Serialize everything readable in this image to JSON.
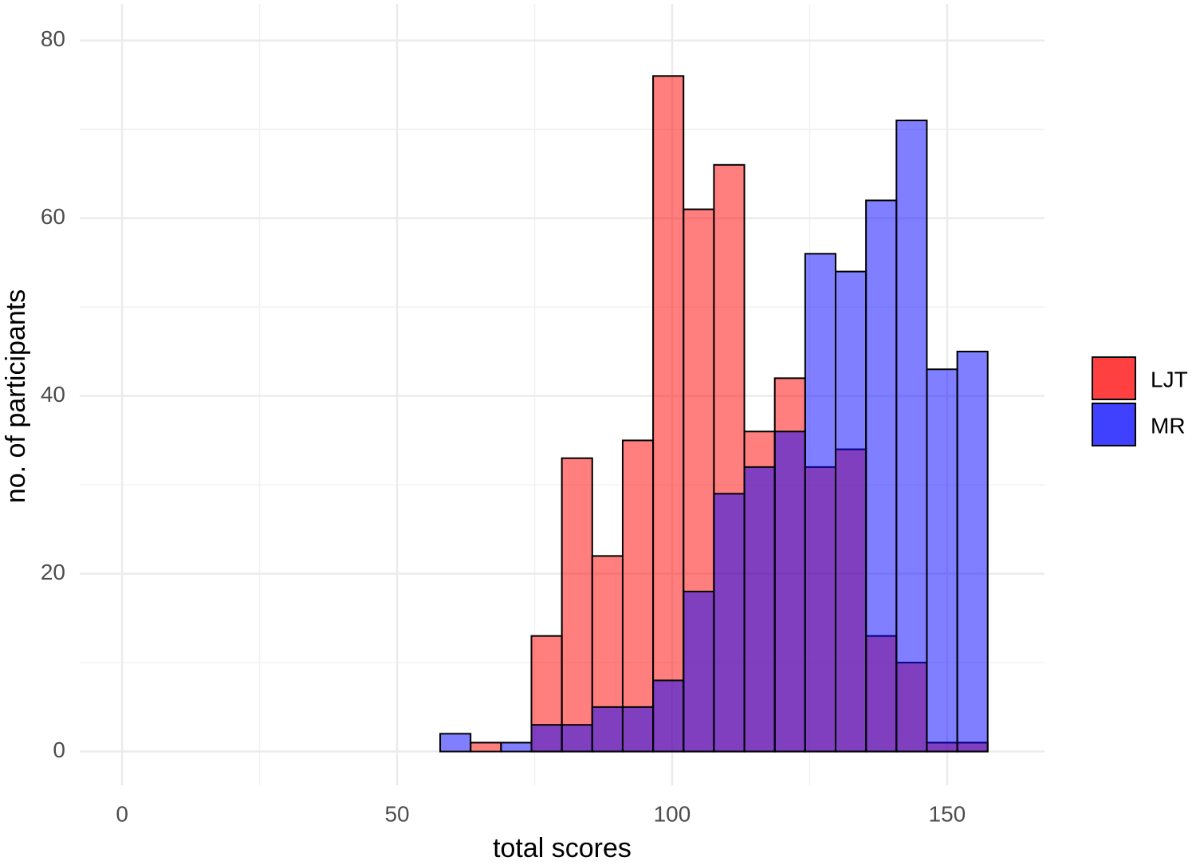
{
  "chart_data": {
    "type": "histogram",
    "x_label": "total scores",
    "y_label": "no. of participants",
    "bins": [
      2.53,
      8.06,
      13.59,
      19.12,
      24.65,
      30.18,
      35.71,
      41.24,
      46.77,
      52.3,
      57.83,
      63.36,
      68.89,
      74.42,
      79.95,
      85.48,
      91.01,
      96.54,
      102.07,
      107.6,
      113.13,
      118.66,
      124.19,
      129.72,
      135.25,
      140.78,
      146.31,
      151.84,
      157.37
    ],
    "series": [
      {
        "name": "LJT",
        "color": "#ff0000",
        "values": [
          0,
          0,
          0,
          0,
          0,
          0,
          0,
          0,
          0,
          0,
          0,
          1,
          0,
          13,
          33,
          22,
          35,
          76,
          61,
          66,
          36,
          42,
          32,
          34,
          13,
          10,
          1,
          1
        ]
      },
      {
        "name": "MR",
        "color": "#0000ff",
        "values": [
          0,
          0,
          0,
          0,
          0,
          0,
          0,
          0,
          0,
          0,
          2,
          0,
          1,
          3,
          3,
          5,
          5,
          8,
          18,
          29,
          32,
          36,
          56,
          54,
          62,
          71,
          43,
          45
        ]
      }
    ],
    "opacity": 0.5,
    "xlim": [
      -7.7,
      167.7
    ],
    "ylim": [
      -3.8,
      84.1
    ],
    "xticks": [
      0,
      50,
      100,
      150
    ],
    "yticks": [
      0,
      20,
      40,
      60,
      80
    ],
    "x_minor_grid": [
      25,
      75,
      125
    ],
    "y_minor_grid": [
      10,
      30,
      50,
      70
    ],
    "grid": true,
    "legend": "right"
  }
}
